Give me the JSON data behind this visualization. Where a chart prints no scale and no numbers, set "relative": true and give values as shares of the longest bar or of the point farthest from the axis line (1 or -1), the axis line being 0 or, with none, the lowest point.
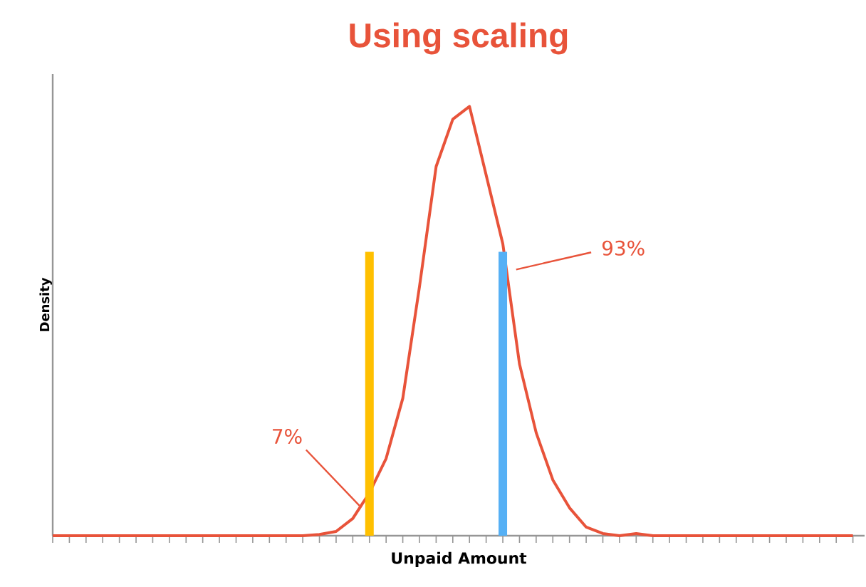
{
  "chart_data": {
    "type": "line",
    "title": "Using scaling",
    "xlabel": "Unpaid Amount",
    "ylabel": "Density",
    "relative": true,
    "categories": [
      null,
      null,
      null,
      null,
      null,
      null,
      null,
      null,
      null,
      null,
      null,
      null,
      null,
      null,
      null,
      null,
      null,
      null,
      null,
      null,
      null,
      null,
      null,
      null,
      null,
      null,
      null,
      null,
      null,
      null,
      null,
      null,
      null,
      null,
      null,
      null,
      null,
      null,
      null,
      null,
      null,
      null,
      null,
      null,
      null,
      null,
      null,
      null,
      null
    ],
    "series": [
      {
        "color": "#e8533a",
        "values": [
          0,
          0,
          0,
          0,
          0,
          0,
          0,
          0,
          0,
          0,
          0,
          0,
          0,
          0,
          0,
          0,
          0.003,
          0.01,
          0.04,
          0.1,
          0.18,
          0.32,
          0.58,
          0.86,
          0.97,
          1,
          0.84,
          0.68,
          0.4,
          0.24,
          0.13,
          0.065,
          0.02,
          0.005,
          0,
          0.005,
          0,
          0,
          0,
          0,
          0,
          0,
          0,
          0,
          0,
          0,
          0,
          0,
          0
        ]
      }
    ],
    "annotations": [
      "7%",
      "93%"
    ]
  }
}
